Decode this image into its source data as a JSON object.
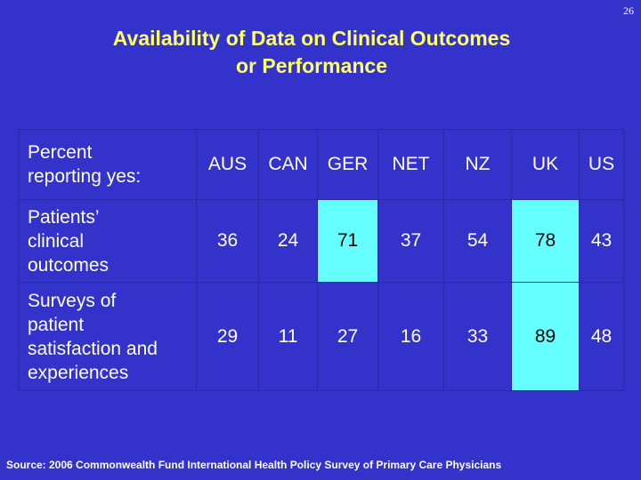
{
  "page_number": "26",
  "title": {
    "line1": "Availability of Data on Clinical Outcomes",
    "line2": "or Performance"
  },
  "table": {
    "corner_label": [
      "Percent",
      "reporting yes:"
    ],
    "columns": [
      "AUS",
      "CAN",
      "GER",
      "NET",
      "NZ",
      "UK",
      "US"
    ],
    "rows": [
      {
        "label": [
          "Patients’",
          "clinical",
          "outcomes"
        ],
        "values": [
          "36",
          "24",
          "71",
          "37",
          "54",
          "78",
          "43"
        ]
      },
      {
        "label": [
          "Surveys of",
          "patient",
          "satisfaction and",
          "experiences"
        ],
        "values": [
          "29",
          "11",
          "27",
          "16",
          "33",
          "89",
          "48"
        ]
      }
    ]
  },
  "highlight_color": "#66ffff",
  "background_color": "#3333cc",
  "title_color": "#ffff66",
  "source": "Source: 2006 Commonwealth Fund International Health Policy Survey of Primary Care Physicians"
}
